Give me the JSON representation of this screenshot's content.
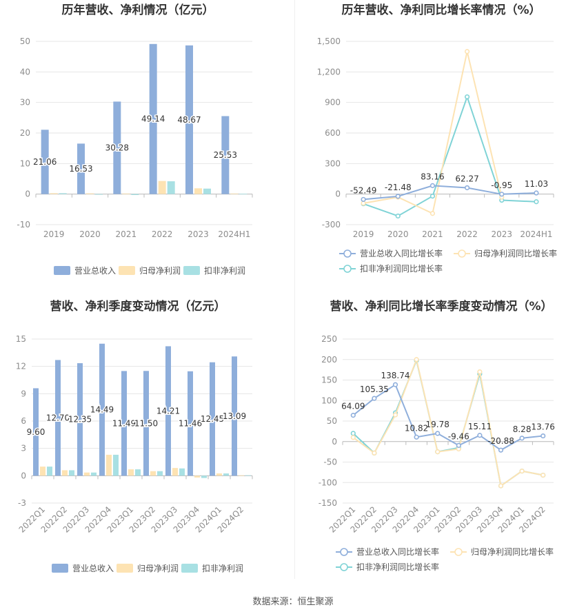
{
  "source_text": "数据来源：恒生聚源",
  "colors": {
    "revenue": "#8eaedb",
    "parent_profit": "#fde3b3",
    "deducted_profit": "#a8e0e3",
    "revenue_line": "#8eaedb",
    "parent_line": "#fde3b3",
    "deducted_line": "#7fd3d6",
    "grid": "#e6e6e6",
    "axis_text": "#8c8c8c",
    "title": "#333333"
  },
  "chart_data": [
    {
      "id": "annual_amount",
      "type": "bar",
      "title": "历年营收、净利情况（亿元）",
      "categories": [
        "2019",
        "2020",
        "2021",
        "2022",
        "2023",
        "2024H1"
      ],
      "ylim": [
        -10,
        50
      ],
      "yticks": [
        -10,
        0,
        10,
        20,
        30,
        40,
        50
      ],
      "series": [
        {
          "name": "营业总收入",
          "values": [
            21.06,
            16.53,
            30.28,
            49.14,
            48.67,
            25.53
          ]
        },
        {
          "name": "归母净利润",
          "values": [
            0.3,
            0.25,
            0.2,
            4.3,
            1.9,
            0.2
          ]
        },
        {
          "name": "扣非净利润",
          "values": [
            0.3,
            -0.2,
            -0.3,
            4.2,
            1.8,
            0.1
          ]
        }
      ],
      "data_labels": [
        "21.06",
        "16.53",
        "30.28",
        "49.14",
        "48.67",
        "25.53"
      ],
      "grid": true,
      "legend": "bottom"
    },
    {
      "id": "annual_growth",
      "type": "line",
      "title": "历年营收、净利同比增长率情况（%）",
      "categories": [
        "2019",
        "2020",
        "2021",
        "2022",
        "2023",
        "2024H1"
      ],
      "ylim": [
        -300,
        1500
      ],
      "yticks": [
        -300,
        0,
        300,
        600,
        900,
        1200,
        1500
      ],
      "ytick_labels": [
        "-300",
        "0",
        "300",
        "600",
        "900",
        "1,200",
        "1,500"
      ],
      "series": [
        {
          "name": "营业总收入同比增长率",
          "values": [
            -52.49,
            -21.48,
            83.16,
            62.27,
            -0.95,
            11.03
          ]
        },
        {
          "name": "归母净利润同比增长率",
          "values": [
            -90,
            -30,
            -190,
            1400,
            -30,
            null
          ]
        },
        {
          "name": "扣非净利润同比增长率",
          "values": [
            -95,
            -215,
            -20,
            955,
            -60,
            -75
          ]
        }
      ],
      "data_labels": [
        "-52.49",
        "-21.48",
        "83.16",
        "62.27",
        "-0.95",
        "11.03"
      ],
      "grid": true,
      "legend": "bottom"
    },
    {
      "id": "quarterly_amount",
      "type": "bar",
      "title": "营收、净利季度变动情况（亿元）",
      "categories": [
        "2022Q1",
        "2022Q2",
        "2022Q3",
        "2022Q4",
        "2023Q1",
        "2023Q2",
        "2023Q3",
        "2023Q4",
        "2024Q1",
        "2024Q2"
      ],
      "ylim": [
        -3,
        15
      ],
      "yticks": [
        -3,
        0,
        3,
        6,
        9,
        12,
        15
      ],
      "series": [
        {
          "name": "营业总收入",
          "values": [
            9.6,
            12.7,
            12.35,
            14.49,
            11.49,
            11.5,
            14.21,
            11.46,
            12.45,
            13.09
          ]
        },
        {
          "name": "归母净利润",
          "values": [
            1.0,
            0.6,
            0.35,
            2.3,
            0.7,
            0.5,
            0.85,
            -0.2,
            0.25,
            0.05
          ]
        },
        {
          "name": "扣非净利润",
          "values": [
            1.0,
            0.6,
            0.35,
            2.3,
            0.7,
            0.5,
            0.8,
            -0.25,
            0.25,
            0.05
          ]
        }
      ],
      "data_labels": [
        "9.60",
        "12.70",
        "12.35",
        "14.49",
        "11.49",
        "11.50",
        "14.21",
        "11.46",
        "12.45",
        "13.09"
      ],
      "grid": true,
      "legend": "bottom"
    },
    {
      "id": "quarterly_growth",
      "type": "line",
      "title": "营收、净利同比增长率季度变动情况（%）",
      "categories": [
        "2022Q1",
        "2022Q2",
        "2022Q3",
        "2022Q4",
        "2023Q1",
        "2023Q2",
        "2023Q3",
        "2023Q4",
        "2024Q1",
        "2024Q2"
      ],
      "ylim": [
        -150,
        250
      ],
      "yticks": [
        -150,
        -100,
        -50,
        0,
        50,
        100,
        150,
        200,
        250
      ],
      "series": [
        {
          "name": "营业总收入同比增长率",
          "values": [
            64.09,
            105.35,
            138.74,
            10.82,
            19.78,
            -9.46,
            15.11,
            -20.88,
            8.28,
            13.76
          ]
        },
        {
          "name": "归母净利润同比增长率",
          "values": [
            10,
            -28,
            65,
            200,
            -25,
            -18,
            170,
            -108,
            -72,
            -82
          ]
        },
        {
          "name": "扣非净利润同比增长率",
          "values": [
            20,
            -28,
            70,
            198,
            -25,
            -15,
            165,
            -108,
            -72,
            -82
          ]
        }
      ],
      "data_labels": [
        "64.09",
        "105.35",
        "138.74",
        "10.82",
        "19.78",
        "-9.46",
        "15.11",
        "-20.88",
        "8.28",
        "13.76"
      ],
      "grid": true,
      "legend": "bottom"
    }
  ]
}
